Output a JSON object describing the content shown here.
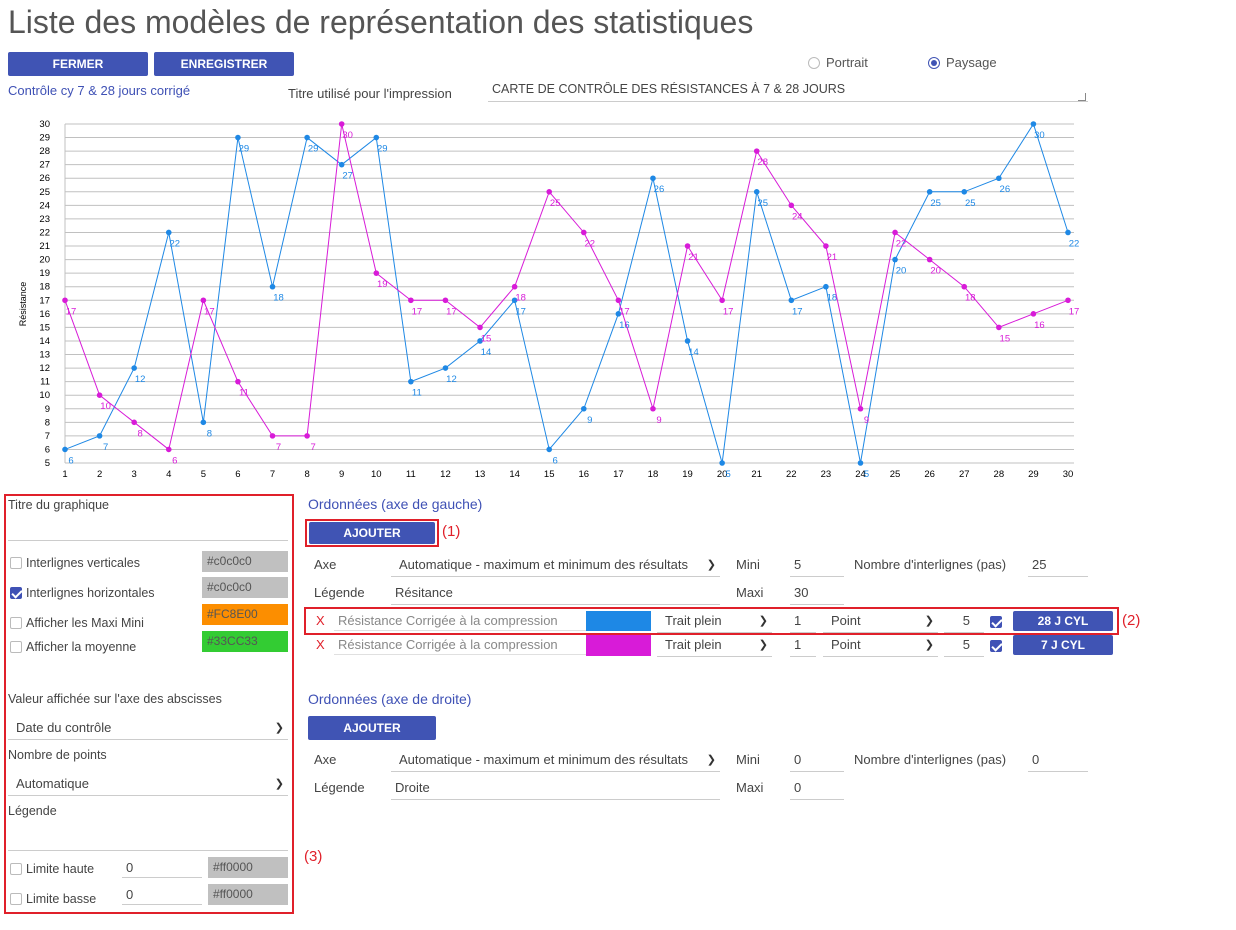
{
  "page": {
    "title": "Liste des modèles de représentation des statistiques"
  },
  "toolbar": {
    "close_label": "FERMER",
    "save_label": "ENREGISTRER"
  },
  "orientation": {
    "portrait_label": "Portrait",
    "paysage_label": "Paysage",
    "selected": "Paysage"
  },
  "model_name": "Contrôle cy 7 & 28 jours corrigé",
  "print_title": {
    "label": "Titre utilisé pour l'impression",
    "value": "CARTE DE CONTRÔLE DES RÉSISTANCES À 7 & 28 JOURS"
  },
  "chart_data": {
    "type": "line",
    "ylabel": "Résistance",
    "ylim": [
      5,
      30
    ],
    "yticks": [
      5,
      6,
      7,
      8,
      9,
      10,
      11,
      12,
      13,
      14,
      15,
      16,
      17,
      18,
      19,
      20,
      21,
      22,
      23,
      24,
      25,
      26,
      27,
      28,
      29,
      30
    ],
    "x": [
      1,
      2,
      3,
      4,
      5,
      6,
      7,
      8,
      9,
      10,
      11,
      12,
      13,
      14,
      15,
      16,
      17,
      18,
      19,
      20,
      21,
      22,
      23,
      24,
      25,
      26,
      27,
      28,
      29,
      30
    ],
    "grid": "horizontal",
    "series": [
      {
        "color": "#1e88e5",
        "values": [
          6,
          7,
          12,
          22,
          8,
          29,
          18,
          29,
          27,
          29,
          11,
          12,
          14,
          17,
          6,
          9,
          16,
          26,
          14,
          5,
          25,
          17,
          18,
          5,
          20,
          25,
          25,
          26,
          30,
          22
        ]
      },
      {
        "color": "#d81bd8",
        "values": [
          17,
          10,
          8,
          6,
          17,
          11,
          7,
          7,
          30,
          19,
          17,
          17,
          15,
          18,
          25,
          22,
          17,
          9,
          21,
          17,
          28,
          24,
          21,
          9,
          22,
          20,
          18,
          15,
          16,
          17
        ]
      }
    ]
  },
  "left_panel": {
    "titre_label": "Titre du graphique",
    "vert_lines": {
      "label": "Interlignes verticales",
      "checked": false,
      "color": "#c0c0c0",
      "color_text": "#c0c0c0"
    },
    "horiz_lines": {
      "label": "Interlignes horizontales",
      "checked": true,
      "color": "#c0c0c0",
      "color_text": "#c0c0c0"
    },
    "maxi_mini": {
      "label": "Afficher les Maxi Mini",
      "checked": false,
      "color": "#FC8E00",
      "color_text": "#FC8E00"
    },
    "moyenne": {
      "label": "Afficher la moyenne",
      "checked": false,
      "color": "#33CC33",
      "color_text": "#33CC33"
    },
    "abscisse_label": "Valeur affichée sur l'axe des abscisses",
    "abscisse_value": "Date du contrôle",
    "points_label": "Nombre de points",
    "points_value": "Automatique",
    "legende_label": "Légende",
    "limite_haute": {
      "label": "Limite haute",
      "value": "0",
      "color_text": "#ff0000"
    },
    "limite_basse": {
      "label": "Limite basse",
      "value": "0",
      "color_text": "#ff0000"
    }
  },
  "left_axis": {
    "header": "Ordonnées (axe de gauche)",
    "add_label": "AJOUTER",
    "axe_label": "Axe",
    "axe_value": "Automatique - maximum et minimum des résultats",
    "mini_label": "Mini",
    "mini_value": "5",
    "steps_label": "Nombre d'interlignes (pas)",
    "steps_value": "25",
    "legend_label": "Légende",
    "legend_value": "Résitance",
    "maxi_label": "Maxi",
    "maxi_value": "30",
    "series": [
      {
        "remove": "X",
        "name": "Résistance Corrigée à la compression",
        "color": "#1e88e5",
        "line": "Trait plein",
        "width": "1",
        "marker": "Point",
        "size": "5",
        "checked": true,
        "button": "28 J CYL"
      },
      {
        "remove": "X",
        "name": "Résistance Corrigée à la compression",
        "color": "#d81bd8",
        "line": "Trait plein",
        "width": "1",
        "marker": "Point",
        "size": "5",
        "checked": true,
        "button": "7 J CYL"
      }
    ]
  },
  "right_axis": {
    "header": "Ordonnées (axe de droite)",
    "add_label": "AJOUTER",
    "axe_label": "Axe",
    "axe_value": "Automatique - maximum et minimum des résultats",
    "mini_label": "Mini",
    "mini_value": "0",
    "steps_label": "Nombre d'interlignes (pas)",
    "steps_value": "0",
    "legend_label": "Légende",
    "legend_value": "Droite",
    "maxi_label": "Maxi",
    "maxi_value": "0"
  },
  "annotations": {
    "a1": "(1)",
    "a2": "(2)",
    "a3": "(3)"
  }
}
